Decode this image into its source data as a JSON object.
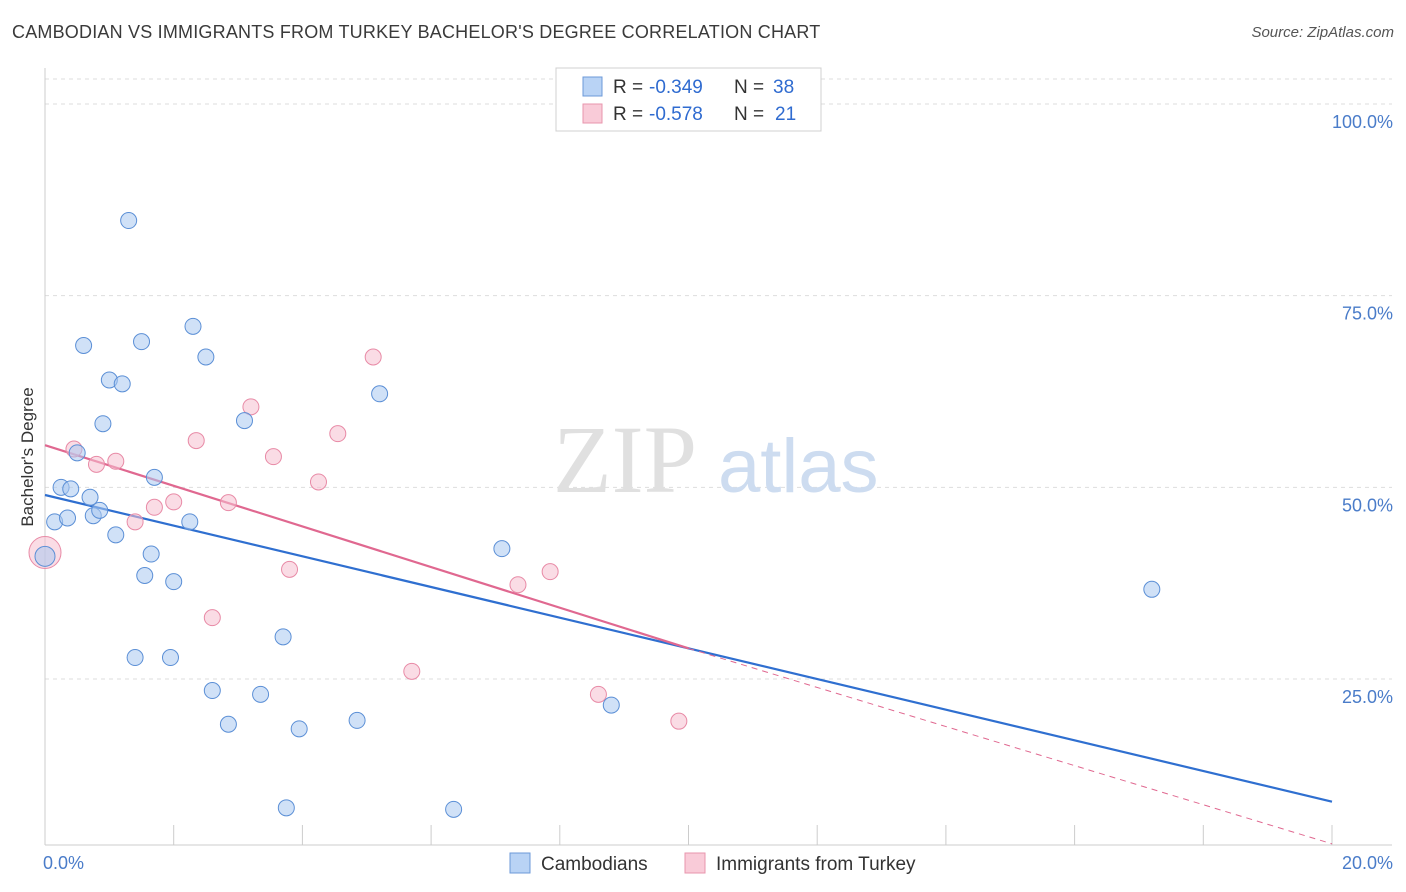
{
  "header": {
    "title": "CAMBODIAN VS IMMIGRANTS FROM TURKEY BACHELOR'S DEGREE CORRELATION CHART",
    "source": "Source: ZipAtlas.com"
  },
  "watermark": {
    "zip": "ZIP",
    "atlas": "atlas"
  },
  "colors": {
    "blue": "#a9c8f0",
    "blue_stroke": "#5b8fd6",
    "blue_line": "#2f6fd0",
    "pink": "#f6bfcf",
    "pink_stroke": "#e88aa6",
    "pink_line": "#e06890",
    "grid": "#dddddd",
    "axis_text": "#4a7cc9"
  },
  "chart_data": {
    "type": "scatter",
    "title": "CAMBODIAN VS IMMIGRANTS FROM TURKEY BACHELOR'S DEGREE CORRELATION CHART",
    "xlabel": "",
    "ylabel": "Bachelor's Degree",
    "xlim": [
      0,
      20
    ],
    "ylim": [
      0,
      105
    ],
    "x_tick_labels": [
      "0.0%",
      "20.0%"
    ],
    "y_ticks": [
      25,
      50,
      75,
      100
    ],
    "y_tick_labels": [
      "25.0%",
      "50.0%",
      "75.0%",
      "100.0%"
    ],
    "legend": {
      "rows": [
        {
          "r_label": "R =",
          "r_value": "-0.349",
          "n_label": "N =",
          "n_value": "38"
        },
        {
          "r_label": "R =",
          "r_value": "-0.578",
          "n_label": "N =",
          "n_value": "21"
        }
      ]
    },
    "series": [
      {
        "name": "Cambodians",
        "points": [
          [
            0.0,
            41.0
          ],
          [
            0.15,
            45.5
          ],
          [
            0.35,
            46.0
          ],
          [
            0.25,
            50.0
          ],
          [
            0.4,
            49.8
          ],
          [
            0.5,
            54.5
          ],
          [
            0.6,
            68.5
          ],
          [
            0.7,
            48.7
          ],
          [
            0.75,
            46.3
          ],
          [
            0.85,
            47.0
          ],
          [
            0.9,
            58.3
          ],
          [
            1.0,
            64.0
          ],
          [
            1.1,
            43.8
          ],
          [
            1.2,
            63.5
          ],
          [
            1.3,
            84.8
          ],
          [
            1.4,
            27.8
          ],
          [
            1.5,
            69.0
          ],
          [
            1.55,
            38.5
          ],
          [
            1.65,
            41.3
          ],
          [
            1.7,
            51.3
          ],
          [
            1.95,
            27.8
          ],
          [
            2.0,
            37.7
          ],
          [
            2.25,
            45.5
          ],
          [
            2.3,
            71.0
          ],
          [
            2.5,
            67.0
          ],
          [
            2.6,
            23.5
          ],
          [
            2.85,
            19.1
          ],
          [
            3.1,
            58.7
          ],
          [
            3.35,
            23.0
          ],
          [
            3.7,
            30.5
          ],
          [
            3.75,
            8.2
          ],
          [
            3.95,
            18.5
          ],
          [
            4.85,
            19.6
          ],
          [
            5.2,
            62.2
          ],
          [
            6.35,
            8.0
          ],
          [
            7.1,
            42.0
          ],
          [
            8.8,
            21.6
          ],
          [
            17.2,
            36.7
          ]
        ]
      },
      {
        "name": "Immigrants from Turkey",
        "points": [
          [
            0.0,
            41.5
          ],
          [
            0.45,
            55.0
          ],
          [
            0.8,
            53.0
          ],
          [
            1.1,
            53.4
          ],
          [
            1.4,
            45.5
          ],
          [
            1.7,
            47.4
          ],
          [
            2.0,
            48.1
          ],
          [
            2.35,
            56.1
          ],
          [
            2.6,
            33.0
          ],
          [
            2.85,
            48.0
          ],
          [
            3.2,
            60.5
          ],
          [
            3.55,
            54.0
          ],
          [
            3.8,
            39.3
          ],
          [
            4.25,
            50.7
          ],
          [
            4.55,
            57.0
          ],
          [
            5.1,
            67.0
          ],
          [
            5.7,
            26.0
          ],
          [
            7.35,
            37.3
          ],
          [
            7.85,
            39.0
          ],
          [
            8.6,
            23.0
          ],
          [
            9.85,
            19.5
          ]
        ]
      }
    ],
    "trend_lines": [
      {
        "series": "Cambodians",
        "x": [
          0,
          20
        ],
        "y": [
          49.0,
          9.0
        ]
      },
      {
        "series": "Immigrants from Turkey",
        "x": [
          0,
          10.0
        ],
        "y": [
          55.5,
          29.0
        ],
        "dashed_extension_to": [
          20,
          3.5
        ]
      }
    ]
  },
  "bottom_legend": {
    "items": [
      {
        "label": "Cambodians"
      },
      {
        "label": "Immigrants from Turkey"
      }
    ]
  }
}
